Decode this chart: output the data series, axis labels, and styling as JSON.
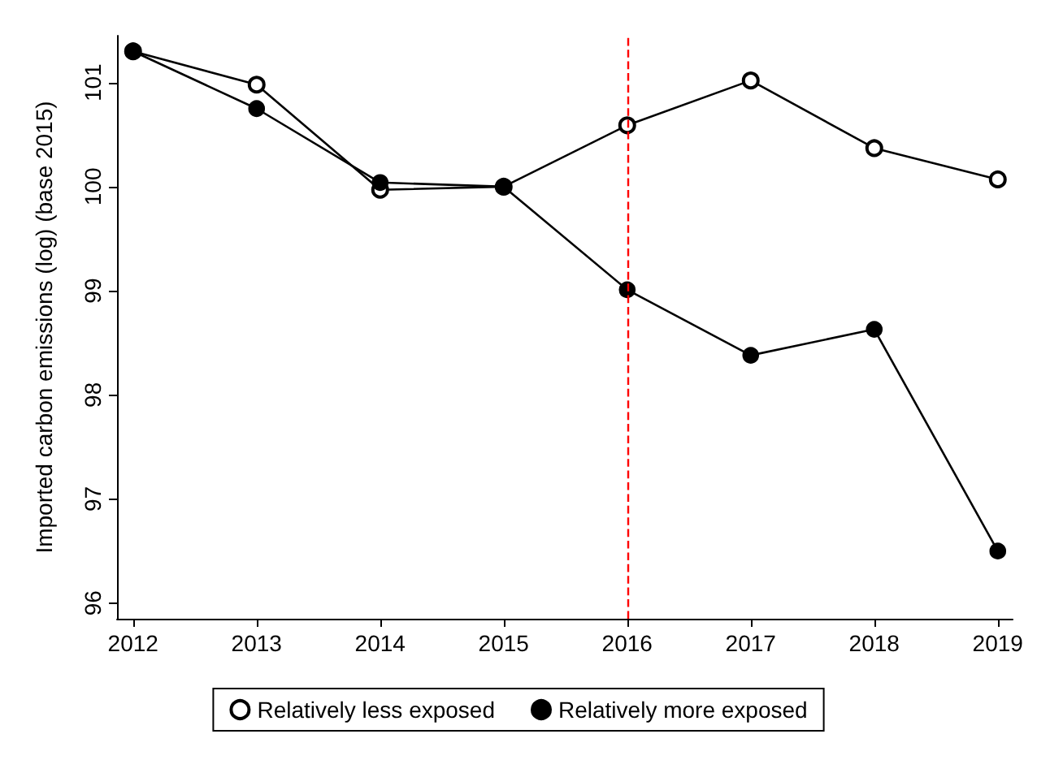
{
  "chart_data": {
    "type": "line",
    "ylabel": "Imported carbon emissions (log) (base 2015)",
    "x": [
      2012,
      2013,
      2014,
      2015,
      2016,
      2017,
      2018,
      2019
    ],
    "series": [
      {
        "name": "Relatively less exposed",
        "color": "#000000",
        "marker": "emptyCircle",
        "values": [
          101.3,
          100.98,
          99.97,
          100,
          100.59,
          101.02,
          100.37,
          100.07
        ]
      },
      {
        "name": "Relatively more exposed",
        "color": "#000000",
        "values": [
          101.3,
          100.75,
          100.04,
          100,
          99.01,
          98.38,
          98.63,
          96.5
        ]
      }
    ],
    "xlim": [
      2011.87,
      2019.12
    ],
    "xticks": [
      2012,
      2013,
      2014,
      2015,
      2016,
      2017,
      2018,
      2019
    ],
    "ylim": [
      95.85,
      101.45
    ],
    "yticks": [
      96,
      97,
      98,
      99,
      100,
      101
    ],
    "ref_lines": [
      {
        "axis": "x",
        "value": 2016,
        "color": "#ff0000",
        "line_style": "dashed"
      }
    ],
    "marker": "circle",
    "line_style": "solid",
    "grid": false,
    "legend": "bottom"
  }
}
